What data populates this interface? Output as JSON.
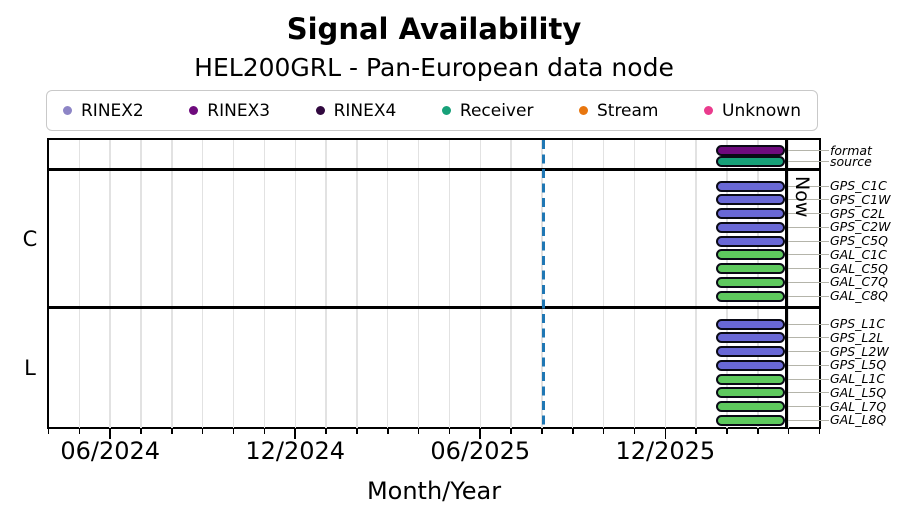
{
  "page": {
    "background": "#ffffff"
  },
  "chart_data": {
    "type": "timeline",
    "title": "Signal Availability",
    "subtitle": "HEL200GRL - Pan-European data node",
    "xlabel": "Month/Year",
    "x_axis": {
      "start": "2024-04-01",
      "end": "2026-05-01",
      "major_ticks": [
        {
          "label": "06/2024",
          "date": "2024-06-01"
        },
        {
          "label": "12/2024",
          "date": "2024-12-01"
        },
        {
          "label": "06/2025",
          "date": "2025-06-01"
        },
        {
          "label": "12/2025",
          "date": "2025-12-01"
        }
      ],
      "minor_tick_interval_months": 1,
      "grid": true,
      "gridline_color": "#e2e2e2"
    },
    "legend": {
      "position": "top",
      "items": [
        {
          "label": "RINEX2",
          "color": "#8d85c6"
        },
        {
          "label": "RINEX3",
          "color": "#6e0a7d"
        },
        {
          "label": "RINEX4",
          "color": "#31093f"
        },
        {
          "label": "Receiver",
          "color": "#17a179"
        },
        {
          "label": "Stream",
          "color": "#e8760f"
        },
        {
          "label": "Unknown",
          "color": "#ea3b8d"
        }
      ]
    },
    "now_line": {
      "label": "Now",
      "date": "2026-03-29",
      "color": "#000000"
    },
    "reference_line": {
      "date": "2025-08-03",
      "style": "dashed",
      "color": "#1f77b4"
    },
    "bar_palette": {
      "gps": "#6968d6",
      "gal": "#5ec95e",
      "rinex3": "#6e0a7d",
      "receiver": "#17a179"
    },
    "bars_start": "2026-01-21",
    "bars_end": "now",
    "sections": [
      {
        "id": "meta",
        "label": "",
        "rows": [
          {
            "label": "format",
            "color_key": "rinex3"
          },
          {
            "label": "source",
            "color_key": "receiver"
          }
        ]
      },
      {
        "id": "C",
        "label": "C",
        "rows": [
          {
            "label": "GPS_C1C",
            "color_key": "gps"
          },
          {
            "label": "GPS_C1W",
            "color_key": "gps"
          },
          {
            "label": "GPS_C2L",
            "color_key": "gps"
          },
          {
            "label": "GPS_C2W",
            "color_key": "gps"
          },
          {
            "label": "GPS_C5Q",
            "color_key": "gps"
          },
          {
            "label": "GAL_C1C",
            "color_key": "gal"
          },
          {
            "label": "GAL_C5Q",
            "color_key": "gal"
          },
          {
            "label": "GAL_C7Q",
            "color_key": "gal"
          },
          {
            "label": "GAL_C8Q",
            "color_key": "gal"
          }
        ]
      },
      {
        "id": "L",
        "label": "L",
        "rows": [
          {
            "label": "GPS_L1C",
            "color_key": "gps"
          },
          {
            "label": "GPS_L2L",
            "color_key": "gps"
          },
          {
            "label": "GPS_L2W",
            "color_key": "gps"
          },
          {
            "label": "GPS_L5Q",
            "color_key": "gps"
          },
          {
            "label": "GAL_L1C",
            "color_key": "gal"
          },
          {
            "label": "GAL_L5Q",
            "color_key": "gal"
          },
          {
            "label": "GAL_L7Q",
            "color_key": "gal"
          },
          {
            "label": "GAL_L8Q",
            "color_key": "gal"
          }
        ]
      }
    ]
  }
}
